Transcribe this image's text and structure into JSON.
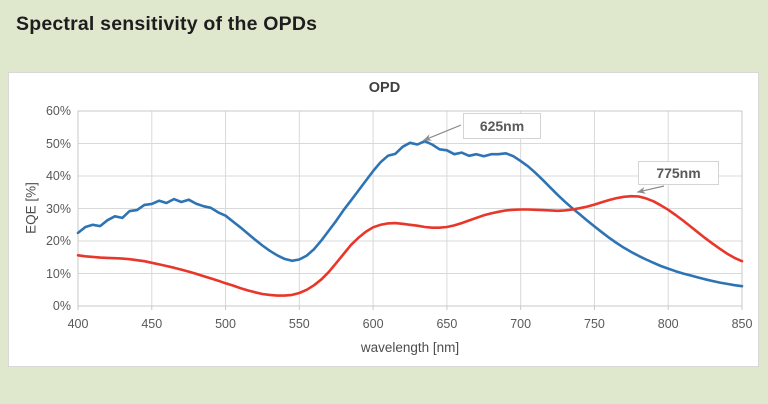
{
  "page": {
    "heading": "Spectral sensitivity of the OPDs",
    "background_color": "#dfe8cc"
  },
  "chart_data": {
    "type": "line",
    "title": "OPD",
    "xlabel": "wavelength [nm]",
    "ylabel": "EQE [%]",
    "xlim": [
      400,
      850
    ],
    "ylim": [
      0,
      60
    ],
    "x_ticks": [
      400,
      450,
      500,
      550,
      600,
      650,
      700,
      750,
      800,
      850
    ],
    "y_tick_labels": [
      "0%",
      "10%",
      "20%",
      "30%",
      "40%",
      "50%",
      "60%"
    ],
    "grid": true,
    "legend": "none",
    "colors": {
      "grid": "#d9d9d9",
      "plot_border": "#c9c9c9",
      "arrow": "#8c8c8c"
    },
    "series": [
      {
        "name": "625nm",
        "color": "#2e74b5",
        "x": [
          400,
          405,
          410,
          415,
          420,
          425,
          430,
          435,
          440,
          445,
          450,
          455,
          460,
          465,
          470,
          475,
          480,
          485,
          490,
          495,
          500,
          505,
          510,
          515,
          520,
          525,
          530,
          535,
          540,
          545,
          550,
          555,
          560,
          565,
          570,
          575,
          580,
          585,
          590,
          595,
          600,
          605,
          610,
          615,
          620,
          625,
          630,
          635,
          640,
          645,
          650,
          655,
          660,
          665,
          670,
          675,
          680,
          685,
          690,
          695,
          700,
          705,
          710,
          715,
          720,
          725,
          730,
          735,
          740,
          745,
          750,
          755,
          760,
          765,
          770,
          775,
          780,
          785,
          790,
          795,
          800,
          805,
          810,
          815,
          820,
          825,
          830,
          835,
          840,
          845,
          850
        ],
        "y": [
          22.5,
          24.3,
          25.0,
          24.6,
          26.4,
          27.6,
          27.1,
          29.2,
          29.5,
          31.1,
          31.4,
          32.4,
          31.7,
          32.9,
          32.0,
          32.7,
          31.5,
          30.7,
          30.2,
          28.8,
          27.8,
          26.0,
          24.2,
          22.3,
          20.4,
          18.6,
          17.0,
          15.6,
          14.5,
          13.9,
          14.3,
          15.5,
          17.5,
          20.2,
          23.2,
          26.2,
          29.5,
          32.5,
          35.5,
          38.5,
          41.5,
          44.2,
          46.2,
          46.8,
          49.0,
          50.2,
          49.7,
          50.7,
          49.7,
          48.2,
          47.9,
          46.7,
          47.2,
          46.2,
          46.7,
          46.1,
          46.7,
          46.7,
          47.0,
          46.1,
          44.6,
          43.0,
          41.0,
          38.8,
          36.5,
          34.2,
          32.1,
          30.1,
          28.2,
          26.3,
          24.5,
          22.7,
          21.0,
          19.4,
          17.9,
          16.6,
          15.4,
          14.3,
          13.3,
          12.3,
          11.5,
          10.7,
          10.0,
          9.4,
          8.8,
          8.2,
          7.7,
          7.2,
          6.8,
          6.4,
          6.1
        ]
      },
      {
        "name": "775nm",
        "color": "#e8372a",
        "x": [
          400,
          405,
          410,
          415,
          420,
          425,
          430,
          435,
          440,
          445,
          450,
          455,
          460,
          465,
          470,
          475,
          480,
          485,
          490,
          495,
          500,
          505,
          510,
          515,
          520,
          525,
          530,
          535,
          540,
          545,
          550,
          555,
          560,
          565,
          570,
          575,
          580,
          585,
          590,
          595,
          600,
          605,
          610,
          615,
          620,
          625,
          630,
          635,
          640,
          645,
          650,
          655,
          660,
          665,
          670,
          675,
          680,
          685,
          690,
          695,
          700,
          705,
          710,
          715,
          720,
          725,
          730,
          735,
          740,
          745,
          750,
          755,
          760,
          765,
          770,
          775,
          780,
          785,
          790,
          795,
          800,
          805,
          810,
          815,
          820,
          825,
          830,
          835,
          840,
          845,
          850
        ],
        "y": [
          15.6,
          15.3,
          15.1,
          14.9,
          14.8,
          14.7,
          14.6,
          14.4,
          14.1,
          13.8,
          13.3,
          12.8,
          12.3,
          11.8,
          11.2,
          10.6,
          9.9,
          9.2,
          8.5,
          7.8,
          7.0,
          6.3,
          5.5,
          4.8,
          4.2,
          3.7,
          3.4,
          3.2,
          3.2,
          3.4,
          4.0,
          5.0,
          6.4,
          8.2,
          10.5,
          13.2,
          16.0,
          18.8,
          21.0,
          22.8,
          24.2,
          25.0,
          25.4,
          25.5,
          25.3,
          25.0,
          24.7,
          24.3,
          24.1,
          24.1,
          24.3,
          24.8,
          25.5,
          26.3,
          27.1,
          27.9,
          28.5,
          29.0,
          29.4,
          29.6,
          29.7,
          29.7,
          29.6,
          29.5,
          29.4,
          29.3,
          29.4,
          29.7,
          30.1,
          30.6,
          31.2,
          31.9,
          32.6,
          33.2,
          33.6,
          33.8,
          33.7,
          33.1,
          32.2,
          31.0,
          29.6,
          28.0,
          26.3,
          24.5,
          22.7,
          20.9,
          19.2,
          17.6,
          16.1,
          14.8,
          13.8
        ]
      }
    ],
    "annotations": [
      {
        "label": "625nm",
        "series": "625nm",
        "points_to_nm": 630
      },
      {
        "label": "775nm",
        "series": "775nm",
        "points_to_nm": 777
      }
    ]
  }
}
